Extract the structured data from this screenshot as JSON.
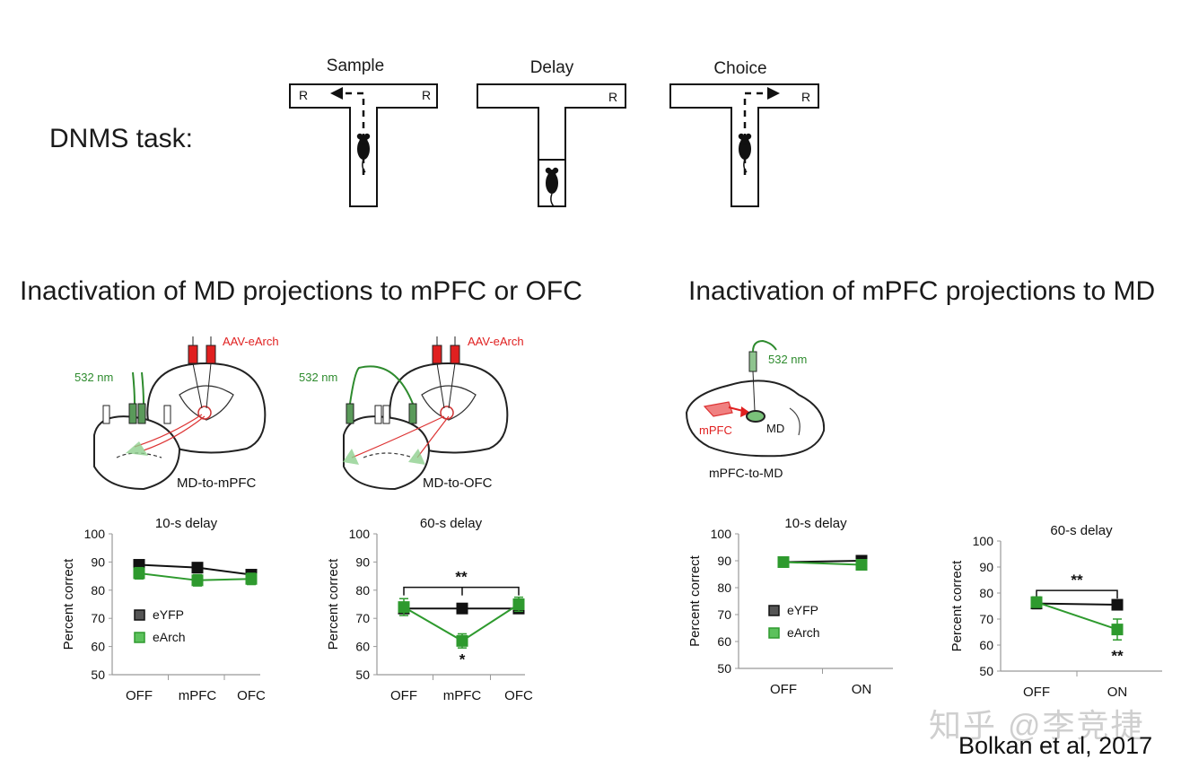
{
  "task": {
    "label": "DNMS task:",
    "phases": [
      {
        "name": "Sample",
        "reward": "R"
      },
      {
        "name": "Delay",
        "reward": "R"
      },
      {
        "name": "Choice",
        "reward": "R"
      }
    ]
  },
  "left_section": {
    "title": "Inactivation of MD projections to mPFC or OFC",
    "schematics": [
      {
        "wavelength": "532 nm",
        "virus": "AAV-eArch",
        "caption": "MD-to-mPFC"
      },
      {
        "wavelength": "532 nm",
        "virus": "AAV-eArch",
        "caption": "MD-to-OFC"
      }
    ]
  },
  "right_section": {
    "title": "Inactivation of mPFC projections to MD",
    "schematic": {
      "wavelength": "532 nm",
      "region_source": "mPFC",
      "region_target": "MD",
      "caption": "mPFC-to-MD"
    }
  },
  "colors": {
    "eYFP": "#111111",
    "eArch": "#2e9a2e",
    "virus": "#e02020",
    "fiber": "#2e8b2e"
  },
  "chart_data": [
    {
      "type": "line",
      "title": "10-s delay",
      "ylabel": "Percent correct",
      "categories": [
        "OFF",
        "mPFC",
        "OFC"
      ],
      "ylim": [
        50,
        100
      ],
      "yticks": [
        50,
        60,
        70,
        80,
        90,
        100
      ],
      "legend": [
        "eYFP",
        "eArch"
      ],
      "series": [
        {
          "name": "eYFP",
          "values": [
            89,
            88,
            85.5
          ],
          "errors": [
            1.5,
            1.5,
            1.5
          ]
        },
        {
          "name": "eArch",
          "values": [
            86,
            83.5,
            84
          ],
          "errors": [
            2,
            2,
            2
          ]
        }
      ],
      "annotations": []
    },
    {
      "type": "line",
      "title": "60-s delay",
      "ylabel": "Percent correct",
      "categories": [
        "OFF",
        "mPFC",
        "OFC"
      ],
      "ylim": [
        50,
        100
      ],
      "yticks": [
        50,
        60,
        70,
        80,
        90,
        100
      ],
      "legend": [],
      "series": [
        {
          "name": "eYFP",
          "values": [
            73.5,
            73.5,
            73.5
          ],
          "errors": [
            1.5,
            1.5,
            1.5
          ]
        },
        {
          "name": "eArch",
          "values": [
            74,
            62,
            75
          ],
          "errors": [
            3,
            2.5,
            2.5
          ]
        }
      ],
      "annotations": [
        {
          "text": "**",
          "type": "bracket",
          "from": 0,
          "to": 2,
          "mid": 1,
          "y": 81
        },
        {
          "text": "*",
          "type": "point",
          "x": 1,
          "y": 55.5
        }
      ]
    },
    {
      "type": "line",
      "title": "10-s delay",
      "ylabel": "Percent correct",
      "categories": [
        "OFF",
        "ON"
      ],
      "ylim": [
        50,
        100
      ],
      "yticks": [
        50,
        60,
        70,
        80,
        90,
        100
      ],
      "legend": [
        "eYFP",
        "eArch"
      ],
      "series": [
        {
          "name": "eYFP",
          "values": [
            89.5,
            90
          ],
          "errors": [
            1.5,
            1.5
          ]
        },
        {
          "name": "eArch",
          "values": [
            89.5,
            88.5
          ],
          "errors": [
            1.5,
            1.5
          ]
        }
      ],
      "annotations": []
    },
    {
      "type": "line",
      "title": "60-s delay",
      "ylabel": "Percent correct",
      "categories": [
        "OFF",
        "ON"
      ],
      "ylim": [
        50,
        100
      ],
      "yticks": [
        50,
        60,
        70,
        80,
        90,
        100
      ],
      "legend": [],
      "series": [
        {
          "name": "eYFP",
          "values": [
            76,
            75.5
          ],
          "errors": [
            2,
            1.5
          ]
        },
        {
          "name": "eArch",
          "values": [
            76.5,
            66
          ],
          "errors": [
            2,
            4
          ]
        }
      ],
      "annotations": [
        {
          "text": "**",
          "type": "bracket",
          "from": 0,
          "to": 1,
          "y": 81
        },
        {
          "text": "**",
          "type": "point",
          "x": 1,
          "y": 56
        }
      ]
    }
  ],
  "watermark": "知乎 @李竞捷",
  "citation": "Bolkan et al, 2017"
}
